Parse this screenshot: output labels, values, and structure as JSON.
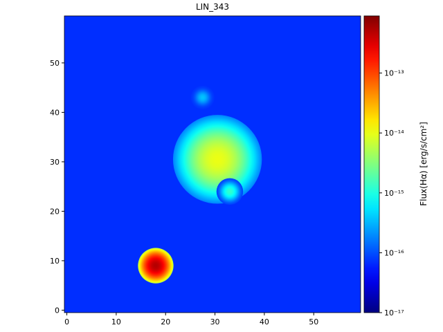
{
  "chart_data": {
    "type": "image",
    "title": "LIN_343",
    "colorbar_label": "Flux(Hα) [erg/s/cm²]",
    "colormap": "jet",
    "xlim": [
      -0.5,
      59.5
    ],
    "ylim": [
      -0.5,
      59.5
    ],
    "xticks": [
      0,
      10,
      20,
      30,
      40,
      50
    ],
    "yticks": [
      0,
      10,
      20,
      30,
      40,
      50
    ],
    "clim": [
      1e-17,
      9e-13
    ],
    "color_scale": "log",
    "cticks": [
      {
        "value": 1e-17,
        "label": "10⁻¹⁷"
      },
      {
        "value": 1e-16,
        "label": "10⁻¹⁶"
      },
      {
        "value": 1e-15,
        "label": "10⁻¹⁵"
      },
      {
        "value": 1e-14,
        "label": "10⁻¹⁴"
      },
      {
        "value": 1e-13,
        "label": "10⁻¹³"
      }
    ],
    "background": 7e-17,
    "sources": [
      {
        "x": 30.5,
        "y": 30.5,
        "flux": 1e-14,
        "sigma": 3
      },
      {
        "x": 33,
        "y": 24,
        "flux": 1.2e-15,
        "sigma": 0.9
      },
      {
        "x": 18,
        "y": 9,
        "flux": 5e-13,
        "sigma": 1.2
      },
      {
        "x": 27.5,
        "y": 43,
        "flux": 3e-16,
        "sigma": 0.8
      }
    ]
  }
}
